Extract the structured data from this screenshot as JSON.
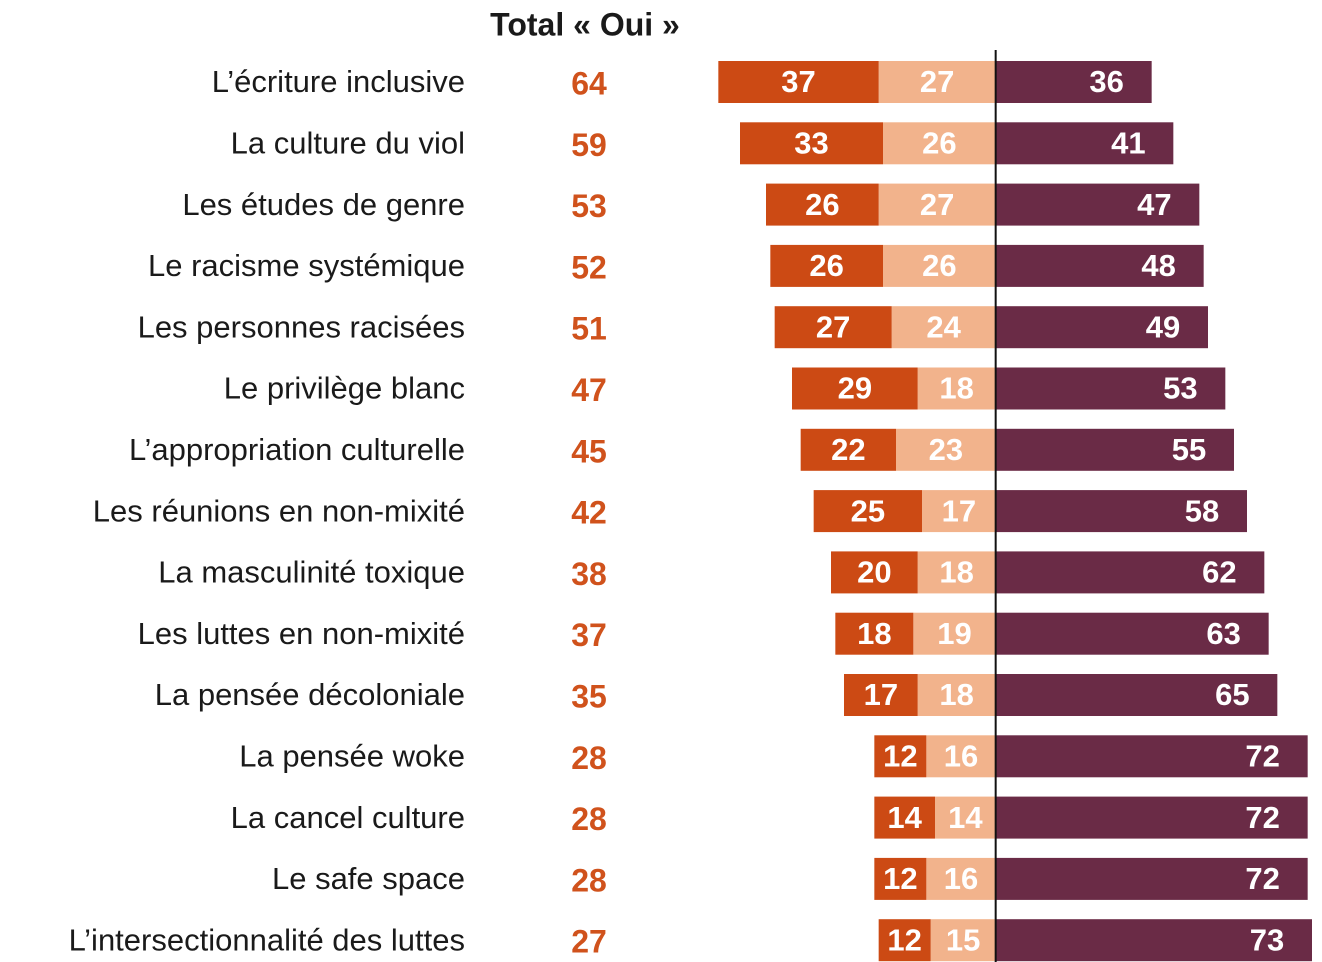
{
  "chart_data": {
    "type": "diverging-bar",
    "totals_header": "Total « Oui »",
    "categories": [
      "L’écriture inclusive",
      "La culture du viol",
      "Les études de genre",
      "Le racisme systémique",
      "Les personnes racisées",
      "Le privilège blanc",
      "L’appropriation culturelle",
      "Les réunions en non-mixité",
      "La masculinité toxique",
      "Les luttes en non-mixité",
      "La pensée décoloniale",
      "La pensée woke",
      "La cancel culture",
      "Le safe space",
      "L’intersectionnalité des luttes"
    ],
    "totals": [
      64,
      59,
      53,
      52,
      51,
      47,
      45,
      42,
      38,
      37,
      35,
      28,
      28,
      28,
      27
    ],
    "series": [
      {
        "color": "#cc4a14",
        "side": "left",
        "values": [
          37,
          33,
          26,
          26,
          27,
          29,
          22,
          25,
          20,
          18,
          17,
          12,
          14,
          12,
          12
        ]
      },
      {
        "color": "#f2b38c",
        "side": "left",
        "values": [
          27,
          26,
          27,
          26,
          24,
          18,
          23,
          17,
          18,
          19,
          18,
          16,
          14,
          16,
          15
        ]
      },
      {
        "color": "#6a2b46",
        "side": "right",
        "values": [
          36,
          41,
          47,
          48,
          49,
          53,
          55,
          58,
          62,
          63,
          65,
          72,
          72,
          72,
          73
        ]
      }
    ],
    "xlim": [
      -65,
      73
    ]
  }
}
